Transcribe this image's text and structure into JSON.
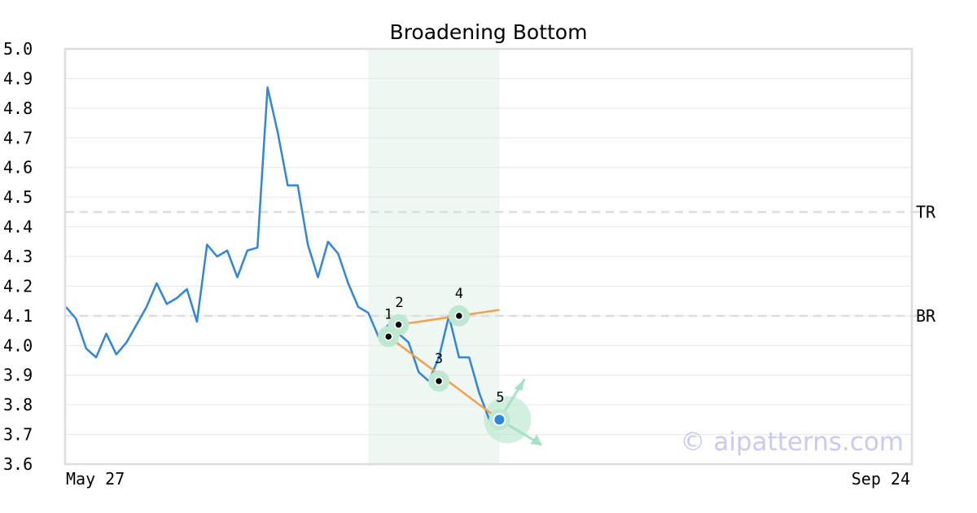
{
  "chart_data": {
    "type": "line",
    "title": "Broadening Bottom",
    "xlabel": "",
    "ylabel": "",
    "ylim": [
      3.6,
      5.0
    ],
    "yticks": [
      "3.6",
      "3.7",
      "3.8",
      "3.9",
      "4.0",
      "4.1",
      "4.2",
      "4.3",
      "4.4",
      "4.5",
      "4.6",
      "4.7",
      "4.8",
      "4.9",
      "5.0"
    ],
    "xtick_labels": [
      "May 27",
      "Sep 24"
    ],
    "grid": "horizontal",
    "series": [
      {
        "values": [
          4.13,
          4.09,
          3.99,
          3.96,
          4.04,
          3.97,
          4.01,
          4.07,
          4.13,
          4.21,
          4.14,
          4.16,
          4.19,
          4.08,
          4.34,
          4.3,
          4.32,
          4.23,
          4.32,
          4.33,
          4.87,
          4.72,
          4.54,
          4.54,
          4.34,
          4.23,
          4.35,
          4.31,
          4.21,
          4.13,
          4.11,
          4.03,
          4.07,
          4.04,
          4.01,
          3.91,
          3.88,
          3.96,
          4.1,
          3.96,
          3.96,
          3.84,
          3.75
        ]
      }
    ],
    "highlight_range": {
      "start": 30,
      "end": 43
    },
    "reference_lines": [
      {
        "label": "TR",
        "value": 4.45
      },
      {
        "label": "BR",
        "value": 4.1
      }
    ],
    "pattern_points": [
      {
        "label": "1",
        "index": 32,
        "value": 4.03
      },
      {
        "label": "2",
        "index": 33,
        "value": 4.07
      },
      {
        "label": "3",
        "index": 37,
        "value": 3.88
      },
      {
        "label": "4",
        "index": 39,
        "value": 4.1
      },
      {
        "label": "5",
        "index": 43,
        "value": 3.75
      }
    ],
    "trend_lines": [
      {
        "from": {
          "index": 33,
          "value": 4.07
        },
        "to": {
          "index": 43,
          "value": 4.12
        }
      },
      {
        "from": {
          "index": 32,
          "value": 4.03
        },
        "to": {
          "index": 43,
          "value": 3.75
        }
      }
    ],
    "watermark": "© aipatterns.com",
    "colors": {
      "line": "#2d86e0",
      "trend": "#f5a04b",
      "highlight": "#eef7f2",
      "marker_halo": "#bfe8d2",
      "arrow": "#a3e2c4",
      "grid": "#e6e6e6",
      "ref": "#dddddd",
      "frame": "#dddddd"
    }
  }
}
